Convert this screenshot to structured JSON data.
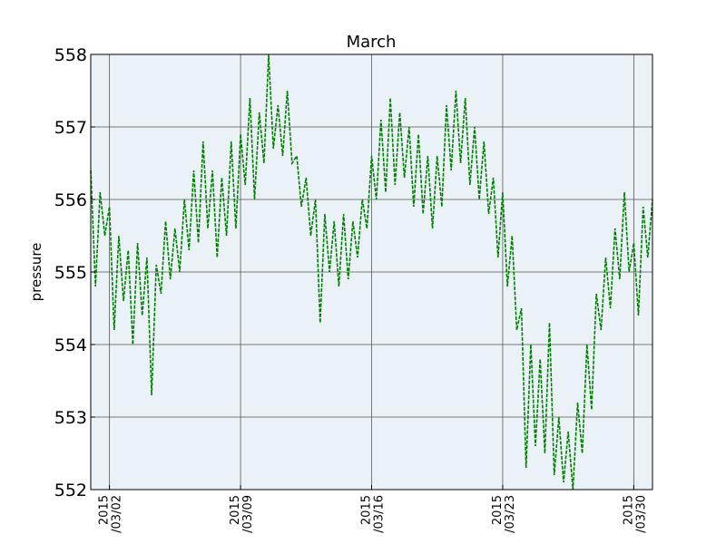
{
  "chart_data": {
    "type": "line",
    "title": "March",
    "ylabel": "pressure",
    "xlabel": "",
    "xlim": [
      "2015-03-01",
      "2015-03-31"
    ],
    "ylim": [
      552,
      558
    ],
    "grid": true,
    "yticks": [
      "552",
      "553",
      "554",
      "555",
      "556",
      "557",
      "558"
    ],
    "xticks": [
      {
        "date": "2015-03-02",
        "line1": "2015",
        "line2": "/03/02"
      },
      {
        "date": "2015-03-09",
        "line1": "2015",
        "line2": "/03/09"
      },
      {
        "date": "2015-03-16",
        "line1": "2015",
        "line2": "/03/16"
      },
      {
        "date": "2015-03-23",
        "line1": "2015",
        "line2": "/03/23"
      },
      {
        "date": "2015-03-30",
        "line1": "2015",
        "line2": "/03/30"
      }
    ],
    "series": [
      {
        "color": "#008000",
        "style": "dashed",
        "x": [
          "2015-03-01 00:00",
          "2015-03-01 06:00",
          "2015-03-01 12:00",
          "2015-03-01 18:00",
          "2015-03-02 00:00",
          "2015-03-02 06:00",
          "2015-03-02 12:00",
          "2015-03-02 18:00",
          "2015-03-03 00:00",
          "2015-03-03 06:00",
          "2015-03-03 12:00",
          "2015-03-03 18:00",
          "2015-03-04 00:00",
          "2015-03-04 06:00",
          "2015-03-04 12:00",
          "2015-03-04 18:00",
          "2015-03-05 00:00",
          "2015-03-05 06:00",
          "2015-03-05 12:00",
          "2015-03-05 18:00",
          "2015-03-06 00:00",
          "2015-03-06 06:00",
          "2015-03-06 12:00",
          "2015-03-06 18:00",
          "2015-03-07 00:00",
          "2015-03-07 06:00",
          "2015-03-07 12:00",
          "2015-03-07 18:00",
          "2015-03-08 00:00",
          "2015-03-08 06:00",
          "2015-03-08 12:00",
          "2015-03-08 18:00",
          "2015-03-09 00:00",
          "2015-03-09 06:00",
          "2015-03-09 12:00",
          "2015-03-09 18:00",
          "2015-03-10 00:00",
          "2015-03-10 06:00",
          "2015-03-10 12:00",
          "2015-03-10 18:00",
          "2015-03-11 00:00",
          "2015-03-11 06:00",
          "2015-03-11 12:00",
          "2015-03-11 18:00",
          "2015-03-12 00:00",
          "2015-03-12 06:00",
          "2015-03-12 12:00",
          "2015-03-12 18:00",
          "2015-03-13 00:00",
          "2015-03-13 06:00",
          "2015-03-13 12:00",
          "2015-03-13 18:00",
          "2015-03-14 00:00",
          "2015-03-14 06:00",
          "2015-03-14 12:00",
          "2015-03-14 18:00",
          "2015-03-15 00:00",
          "2015-03-15 06:00",
          "2015-03-15 12:00",
          "2015-03-15 18:00",
          "2015-03-16 00:00",
          "2015-03-16 06:00",
          "2015-03-16 12:00",
          "2015-03-16 18:00",
          "2015-03-17 00:00",
          "2015-03-17 06:00",
          "2015-03-17 12:00",
          "2015-03-17 18:00",
          "2015-03-18 00:00",
          "2015-03-18 06:00",
          "2015-03-18 12:00",
          "2015-03-18 18:00",
          "2015-03-19 00:00",
          "2015-03-19 06:00",
          "2015-03-19 12:00",
          "2015-03-19 18:00",
          "2015-03-20 00:00",
          "2015-03-20 06:00",
          "2015-03-20 12:00",
          "2015-03-20 18:00",
          "2015-03-21 00:00",
          "2015-03-21 06:00",
          "2015-03-21 12:00",
          "2015-03-21 18:00",
          "2015-03-22 00:00",
          "2015-03-22 06:00",
          "2015-03-22 12:00",
          "2015-03-22 18:00",
          "2015-03-23 00:00",
          "2015-03-23 06:00",
          "2015-03-23 12:00",
          "2015-03-23 18:00",
          "2015-03-24 00:00",
          "2015-03-24 06:00",
          "2015-03-24 12:00",
          "2015-03-24 18:00",
          "2015-03-25 00:00",
          "2015-03-25 06:00",
          "2015-03-25 12:00",
          "2015-03-25 18:00",
          "2015-03-26 00:00",
          "2015-03-26 06:00",
          "2015-03-26 12:00",
          "2015-03-26 18:00",
          "2015-03-27 00:00",
          "2015-03-27 06:00",
          "2015-03-27 12:00",
          "2015-03-27 18:00",
          "2015-03-28 00:00",
          "2015-03-28 06:00",
          "2015-03-28 12:00",
          "2015-03-28 18:00",
          "2015-03-29 00:00",
          "2015-03-29 06:00",
          "2015-03-29 12:00",
          "2015-03-29 18:00",
          "2015-03-30 00:00",
          "2015-03-30 06:00",
          "2015-03-30 12:00",
          "2015-03-30 18:00",
          "2015-03-31 00:00"
        ],
        "y": [
          556.4,
          554.8,
          556.1,
          555.5,
          555.9,
          554.2,
          555.5,
          554.6,
          555.3,
          554.0,
          555.4,
          554.4,
          555.2,
          553.3,
          555.1,
          554.7,
          555.7,
          554.9,
          555.6,
          555.0,
          556.0,
          555.3,
          556.4,
          555.4,
          556.8,
          555.6,
          556.4,
          555.2,
          556.3,
          555.5,
          556.8,
          555.6,
          556.9,
          556.2,
          557.4,
          556.0,
          557.2,
          556.5,
          558.0,
          556.7,
          557.3,
          556.6,
          557.5,
          556.5,
          556.6,
          555.9,
          556.3,
          555.5,
          556.0,
          554.3,
          555.8,
          555.0,
          555.7,
          554.8,
          555.8,
          554.9,
          555.7,
          555.2,
          556.0,
          555.6,
          556.6,
          556.0,
          557.1,
          556.1,
          557.4,
          556.2,
          557.2,
          556.3,
          557.0,
          555.9,
          556.9,
          555.8,
          556.6,
          555.6,
          556.6,
          555.9,
          557.3,
          556.4,
          557.5,
          556.5,
          557.4,
          556.2,
          557.0,
          556.0,
          556.8,
          555.8,
          556.3,
          555.2,
          556.1,
          554.8,
          555.5,
          554.2,
          554.5,
          552.3,
          554.0,
          552.6,
          553.8,
          552.5,
          554.3,
          552.2,
          553.0,
          552.1,
          552.8,
          552.0,
          553.2,
          552.5,
          554.0,
          553.1,
          554.7,
          554.2,
          555.2,
          554.5,
          555.6,
          554.9,
          556.1,
          555.0,
          555.4,
          554.4,
          555.9,
          555.2,
          556.0
        ]
      }
    ]
  }
}
